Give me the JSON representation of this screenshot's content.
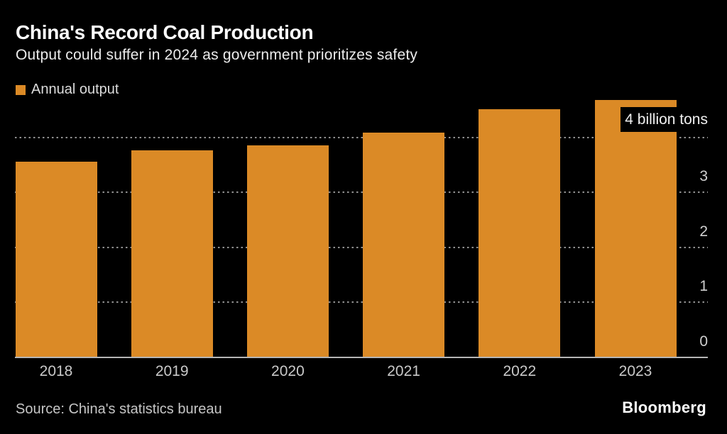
{
  "header": {
    "title": "China's Record Coal Production",
    "subtitle": "Output could suffer in 2024 as government prioritizes safety"
  },
  "legend": {
    "label": "Annual output"
  },
  "chart_data": {
    "type": "bar",
    "title": "China's Record Coal Production",
    "subtitle": "Output could suffer in 2024 as government prioritizes safety",
    "series_name": "Annual output",
    "categories": [
      "2018",
      "2019",
      "2020",
      "2021",
      "2022",
      "2023"
    ],
    "values": [
      3.55,
      3.75,
      3.84,
      4.07,
      4.5,
      4.66
    ],
    "unit": "billion tons",
    "ylim": [
      0,
      4.75
    ],
    "y_ticks": [
      0,
      1,
      2,
      3,
      4
    ],
    "y_top_tick_label": "4 billion tons",
    "grid": "horizontal dotted",
    "legend_position": "top-left",
    "value_axis_side": "right",
    "bar_color": "#DB8A26"
  },
  "colors": {
    "background": "#000000",
    "bar": "#DB8A26",
    "title_text": "#FFFFFF",
    "subtitle_text": "#ECECEC",
    "axis_text": "#D0D0D0",
    "gridline": "#909090",
    "baseline": "#B6B6B6"
  },
  "footer": {
    "source": "Source: China's statistics bureau",
    "brand": "Bloomberg"
  }
}
